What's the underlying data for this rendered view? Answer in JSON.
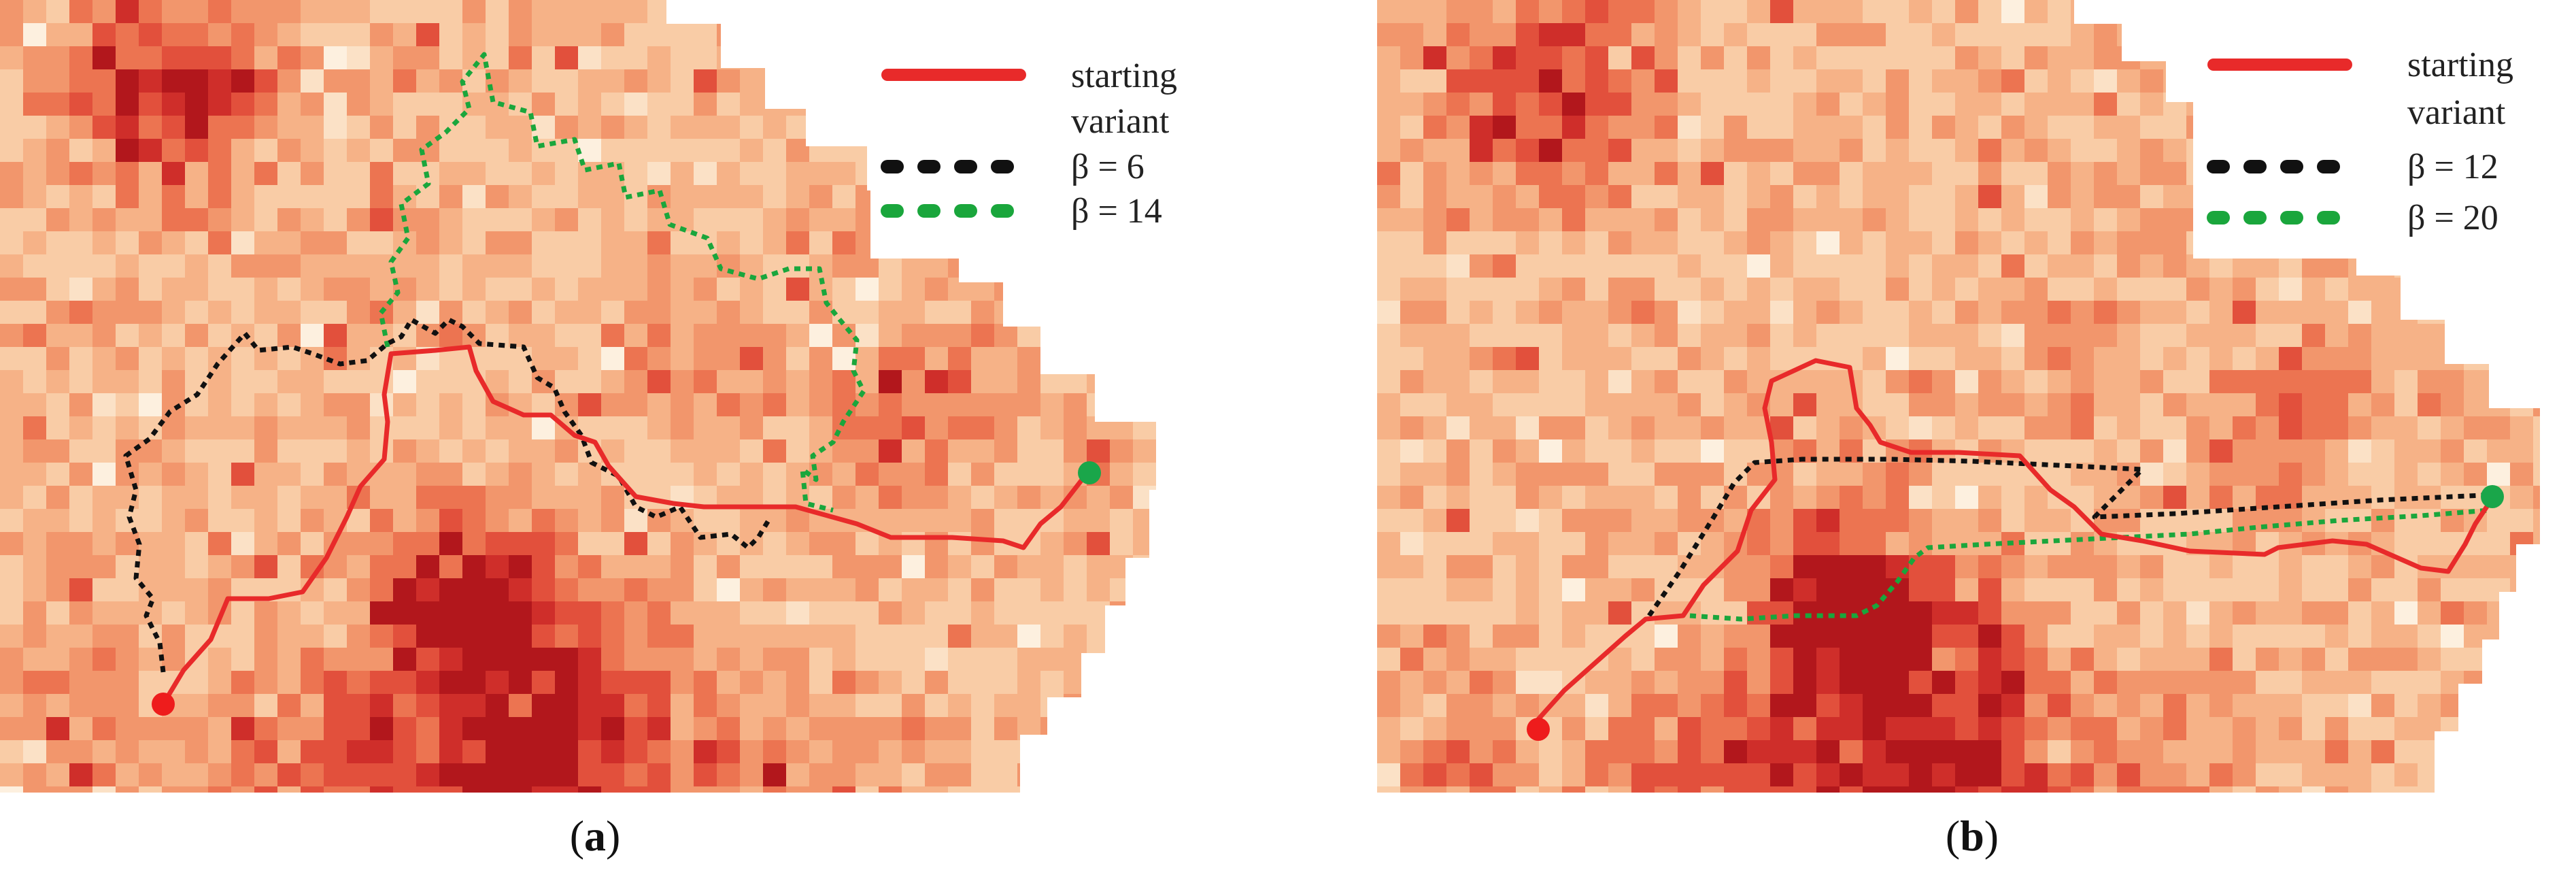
{
  "colors": {
    "map_palette": [
      "#fdf0df",
      "#fbe1c6",
      "#f9cca6",
      "#f6b287",
      "#f2966c",
      "#ec7451",
      "#e2503c",
      "#cf2e2a",
      "#b2171c"
    ],
    "starting_variant": "#e82a2a",
    "variant_1": "#111111",
    "variant_2": "#1aa63c",
    "start_point": "#ee1c1c",
    "end_point": "#1aa64a"
  },
  "panels": [
    {
      "id": "a",
      "caption_open": "(",
      "caption_letter": "a",
      "caption_close": ")",
      "legend": [
        {
          "key": "starting",
          "label_lines": [
            "starting",
            "variant"
          ],
          "style": "solid",
          "color": "#e82a2a"
        },
        {
          "key": "beta_low",
          "label_lines": [
            "β = 6"
          ],
          "style": "dotted",
          "color": "#111111"
        },
        {
          "key": "beta_high",
          "label_lines": [
            "β = 14"
          ],
          "style": "dotted",
          "color": "#1aa63c"
        }
      ],
      "markers": [
        {
          "name": "start-point",
          "color": "#ee1c1c"
        },
        {
          "name": "end-point",
          "color": "#1aa64a"
        }
      ]
    },
    {
      "id": "b",
      "caption_open": "(",
      "caption_letter": "b",
      "caption_close": ")",
      "legend": [
        {
          "key": "starting",
          "label_lines": [
            "starting",
            "variant"
          ],
          "style": "solid",
          "color": "#e82a2a"
        },
        {
          "key": "beta_low",
          "label_lines": [
            "β = 12"
          ],
          "style": "dotted",
          "color": "#111111"
        },
        {
          "key": "beta_high",
          "label_lines": [
            "β = 20"
          ],
          "style": "dotted",
          "color": "#1aa63c"
        }
      ],
      "markers": [
        {
          "name": "start-point",
          "color": "#ee1c1c"
        },
        {
          "name": "end-point",
          "color": "#1aa64a"
        }
      ]
    }
  ]
}
